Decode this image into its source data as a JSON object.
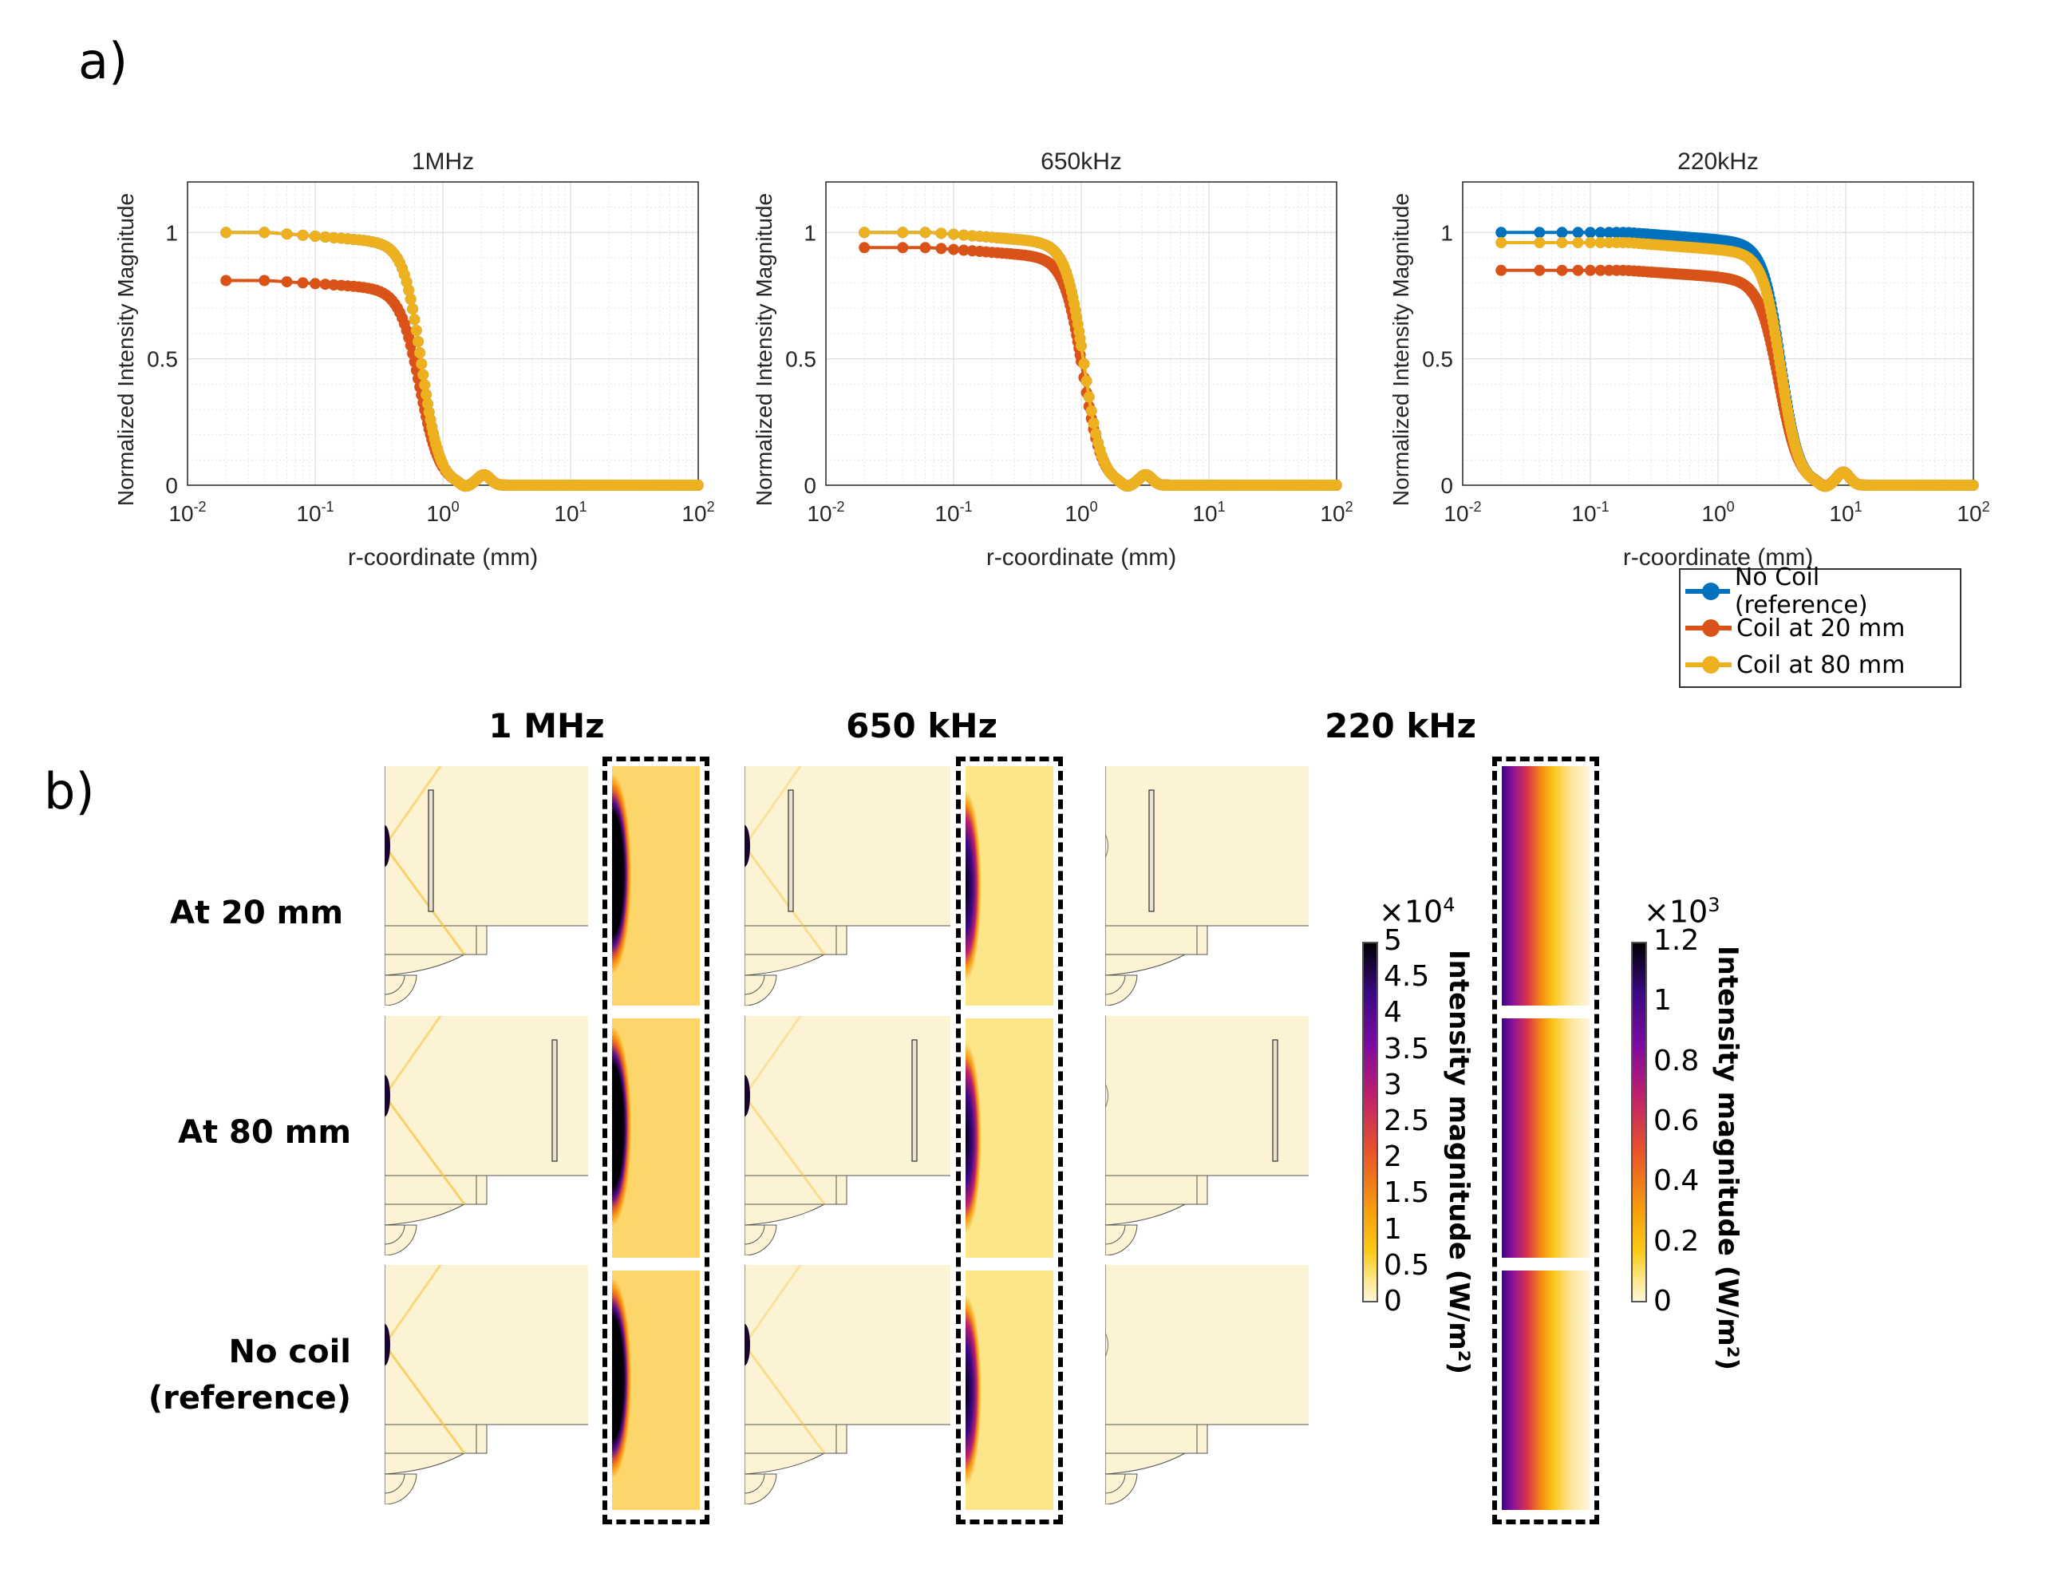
{
  "panel_labels": {
    "a": "a)",
    "b": "b)"
  },
  "series_colors": {
    "no_coil": "#0072bd",
    "coil_20": "#d95319",
    "coil_80": "#edb120"
  },
  "legend": [
    {
      "key": "no_coil",
      "label": "No Coil (reference)"
    },
    {
      "key": "coil_20",
      "label": "Coil at 20 mm"
    },
    {
      "key": "coil_80",
      "label": "Coil at 80 mm"
    }
  ],
  "chart_data": [
    {
      "type": "line",
      "title": "1MHz",
      "xlabel": "r-coordinate (mm)",
      "ylabel": "Normalized Intensity Magnitude",
      "xscale": "log",
      "xlim": [
        0.01,
        100
      ],
      "ylim": [
        0,
        1.2
      ],
      "xticks": [
        {
          "base": "10",
          "exp": "-2"
        },
        {
          "base": "10",
          "exp": "-1"
        },
        {
          "base": "10",
          "exp": "0"
        },
        {
          "base": "10",
          "exp": "1"
        },
        {
          "base": "10",
          "exp": "2"
        }
      ],
      "yticks": [
        "0",
        "0.5",
        "1"
      ],
      "grid": true,
      "series": [
        {
          "name": "No Coil (reference)",
          "key": "no_coil",
          "plateau": 1.0,
          "r50": 0.68,
          "width": 0.17,
          "ripple_x": 2.1,
          "ripple_y": 0.04
        },
        {
          "name": "Coil at 20 mm",
          "key": "coil_20",
          "plateau": 0.81,
          "r50": 0.66,
          "width": 0.19,
          "ripple_x": 2.1,
          "ripple_y": 0.04
        },
        {
          "name": "Coil at 80 mm",
          "key": "coil_80",
          "plateau": 1.0,
          "r50": 0.68,
          "width": 0.17,
          "ripple_x": 2.1,
          "ripple_y": 0.04
        }
      ]
    },
    {
      "type": "line",
      "title": "650kHz",
      "xlabel": "r-coordinate (mm)",
      "ylabel": "Normalized Intensity Magnitude",
      "xscale": "log",
      "xlim": [
        0.01,
        100
      ],
      "ylim": [
        0,
        1.2
      ],
      "xticks": [
        {
          "base": "10",
          "exp": "-2"
        },
        {
          "base": "10",
          "exp": "-1"
        },
        {
          "base": "10",
          "exp": "0"
        },
        {
          "base": "10",
          "exp": "1"
        },
        {
          "base": "10",
          "exp": "2"
        }
      ],
      "yticks": [
        "0",
        "0.5",
        "1"
      ],
      "grid": true,
      "series": [
        {
          "name": "No Coil (reference)",
          "key": "no_coil",
          "plateau": 1.0,
          "r50": 1.05,
          "width": 0.17,
          "ripple_x": 3.2,
          "ripple_y": 0.04
        },
        {
          "name": "Coil at 20 mm",
          "key": "coil_20",
          "plateau": 0.94,
          "r50": 1.03,
          "width": 0.18,
          "ripple_x": 3.2,
          "ripple_y": 0.04
        },
        {
          "name": "Coil at 80 mm",
          "key": "coil_80",
          "plateau": 1.0,
          "r50": 1.05,
          "width": 0.17,
          "ripple_x": 3.2,
          "ripple_y": 0.04
        }
      ]
    },
    {
      "type": "line",
      "title": "220kHz",
      "xlabel": "r-coordinate (mm)",
      "ylabel": "Normalized Intensity Magnitude",
      "xscale": "log",
      "xlim": [
        0.01,
        100
      ],
      "ylim": [
        0,
        1.2
      ],
      "xticks": [
        {
          "base": "10",
          "exp": "-2"
        },
        {
          "base": "10",
          "exp": "-1"
        },
        {
          "base": "10",
          "exp": "0"
        },
        {
          "base": "10",
          "exp": "1"
        },
        {
          "base": "10",
          "exp": "2"
        }
      ],
      "yticks": [
        "0",
        "0.5",
        "1"
      ],
      "grid": true,
      "series": [
        {
          "name": "No Coil (reference)",
          "key": "no_coil",
          "plateau": 1.0,
          "r50": 3.1,
          "width": 0.17,
          "ripple_x": 9.6,
          "ripple_y": 0.05
        },
        {
          "name": "Coil at 20 mm",
          "key": "coil_20",
          "plateau": 0.85,
          "r50": 3.0,
          "width": 0.19,
          "ripple_x": 9.6,
          "ripple_y": 0.05
        },
        {
          "name": "Coil at 80 mm",
          "key": "coil_80",
          "plateau": 0.96,
          "r50": 3.1,
          "width": 0.17,
          "ripple_x": 9.6,
          "ripple_y": 0.05
        }
      ]
    }
  ],
  "section_b": {
    "column_titles": [
      "1 MHz",
      "650 kHz",
      "220 kHz"
    ],
    "row_labels": [
      {
        "lines": [
          "At 20 mm"
        ]
      },
      {
        "lines": [
          "At 80 mm"
        ]
      },
      {
        "lines": [
          "No coil",
          "(reference)"
        ]
      }
    ],
    "colorbar_1": {
      "exponent_base": "×10",
      "exponent": "4",
      "ticks": [
        "5",
        "4.5",
        "4",
        "3.5",
        "3",
        "2.5",
        "2",
        "1.5",
        "1",
        "0.5",
        "0"
      ],
      "title": "Intensity magnitude (W/m²)"
    },
    "colorbar_2": {
      "exponent_base": "×10",
      "exponent": "3",
      "ticks": [
        "1.2",
        "1",
        "0.8",
        "0.6",
        "0.4",
        "0.2",
        "0"
      ],
      "title": "Intensity magnitude (W/m²)"
    }
  }
}
